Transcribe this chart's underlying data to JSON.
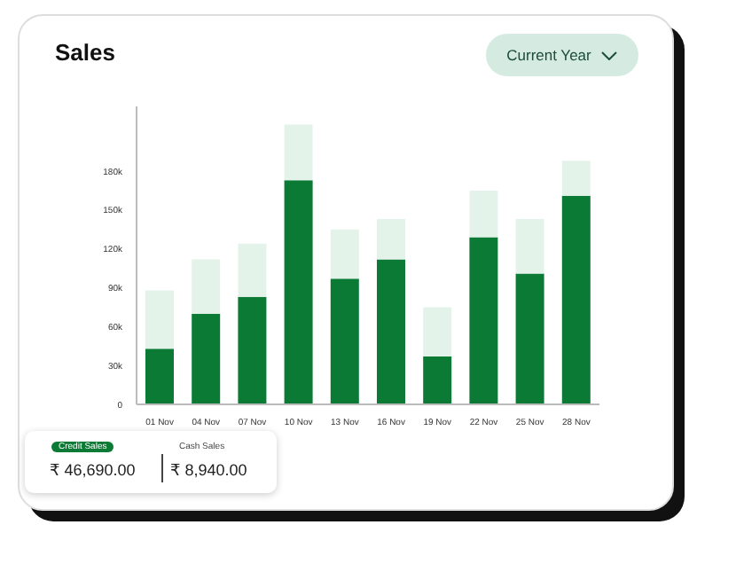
{
  "chart_data": {
    "type": "bar",
    "title": "Sales",
    "stacked": true,
    "categories": [
      "01 Nov",
      "04 Nov",
      "07 Nov",
      "10 Nov",
      "13 Nov",
      "16 Nov",
      "19 Nov",
      "22 Nov",
      "25 Nov",
      "28 Nov"
    ],
    "series": [
      {
        "color": "#0b7a35",
        "values": [
          43000,
          70000,
          83000,
          173000,
          97000,
          112000,
          37000,
          129000,
          101000,
          161000
        ]
      },
      {
        "color": "#e4f3e9",
        "values": [
          45000,
          42000,
          41000,
          43000,
          38000,
          31000,
          38000,
          36000,
          42000,
          27000
        ]
      }
    ],
    "ylim": [
      0,
      230000
    ],
    "yticks": [
      {
        "value": 0,
        "label": "0"
      },
      {
        "value": 30000,
        "label": "30k"
      },
      {
        "value": 60000,
        "label": "60k"
      },
      {
        "value": 90000,
        "label": "90k"
      },
      {
        "value": 120000,
        "label": "120k"
      },
      {
        "value": 150000,
        "label": "150k"
      },
      {
        "value": 180000,
        "label": "180k"
      }
    ],
    "grid": false,
    "legend": false,
    "annotations": [
      "Current Year",
      "Credit Sales",
      "₹ 46,690.00",
      "Cash Sales",
      "₹ 8,940.00"
    ]
  }
}
